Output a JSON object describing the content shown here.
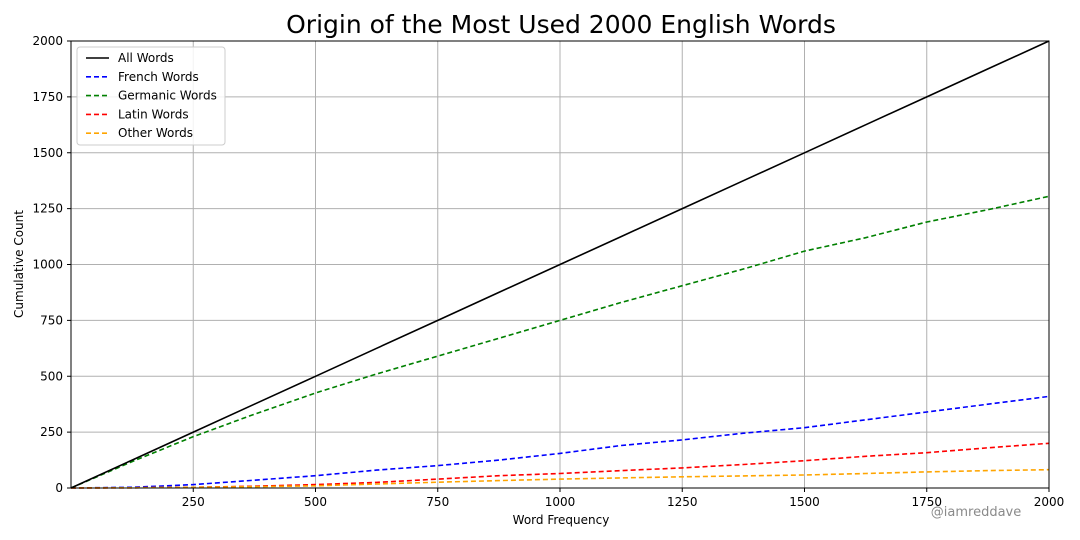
{
  "chart_data": {
    "type": "line",
    "title": "Origin of the Most Used 2000 English Words",
    "xlabel": "Word Frequency",
    "ylabel": "Cumulative Count",
    "xlim": [
      0,
      2000
    ],
    "ylim": [
      0,
      2000
    ],
    "xticks": [
      250,
      500,
      750,
      1000,
      1250,
      1500,
      1750,
      2000
    ],
    "yticks": [
      0,
      250,
      500,
      750,
      1000,
      1250,
      1500,
      1750,
      2000
    ],
    "grid": true,
    "legend_position": "upper left",
    "x": [
      0,
      125,
      250,
      375,
      500,
      625,
      750,
      875,
      1000,
      1125,
      1250,
      1375,
      1500,
      1625,
      1750,
      1875,
      2000
    ],
    "series": [
      {
        "name": "All Words",
        "color": "#000000",
        "style": "solid",
        "values": [
          0,
          125,
          250,
          375,
          500,
          625,
          750,
          875,
          1000,
          1125,
          1250,
          1375,
          1500,
          1625,
          1750,
          1875,
          2000
        ]
      },
      {
        "name": "French Words",
        "color": "#0000ff",
        "style": "dashed",
        "values": [
          0,
          3,
          15,
          35,
          55,
          80,
          100,
          125,
          155,
          190,
          215,
          245,
          270,
          305,
          340,
          375,
          410
        ]
      },
      {
        "name": "Germanic Words",
        "color": "#008000",
        "style": "dashed",
        "values": [
          0,
          118,
          230,
          330,
          425,
          510,
          590,
          670,
          750,
          830,
          905,
          980,
          1060,
          1120,
          1190,
          1245,
          1305
        ]
      },
      {
        "name": "Latin Words",
        "color": "#ff0000",
        "style": "dashed",
        "values": [
          0,
          1,
          3,
          8,
          15,
          25,
          40,
          55,
          65,
          78,
          90,
          105,
          122,
          142,
          158,
          180,
          200
        ]
      },
      {
        "name": "Other Words",
        "color": "#ffa500",
        "style": "dashed",
        "values": [
          0,
          1,
          3,
          6,
          10,
          18,
          26,
          33,
          40,
          45,
          50,
          54,
          58,
          65,
          72,
          78,
          82
        ]
      }
    ]
  },
  "watermark": "@iamreddave"
}
